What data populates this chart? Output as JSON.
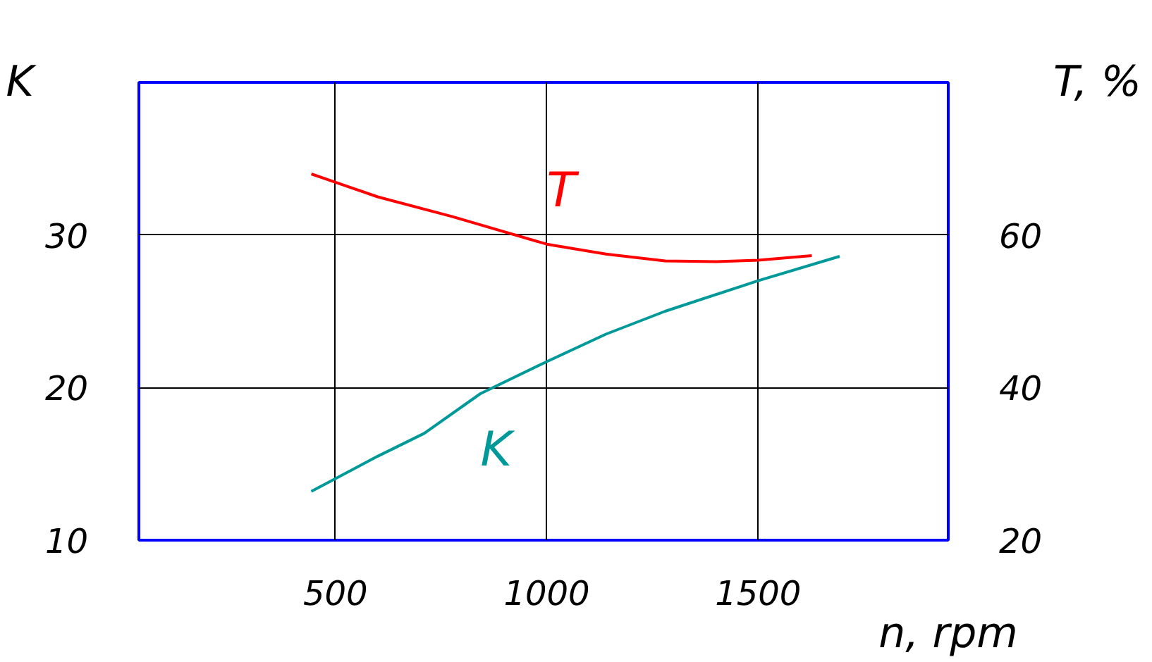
{
  "chart_data": {
    "type": "line",
    "ylabel": "K",
    "y2label": "T, %",
    "xlabel": "n, rpm",
    "xlim": [
      35,
      1950
    ],
    "xticks": [
      500,
      1000,
      1500
    ],
    "ylim": [
      10,
      40
    ],
    "yticks": [
      10,
      20,
      30
    ],
    "y2lim": [
      20,
      80
    ],
    "y2ticks": [
      20,
      40,
      60
    ],
    "grid": true,
    "series": [
      {
        "name": "T",
        "color": "#ff0000",
        "axis": "y2",
        "x": [
          443,
          600,
          777,
          1000,
          1140,
          1280,
          1400,
          1500,
          1627
        ],
        "values": [
          68,
          65,
          62.4,
          58.8,
          57.5,
          56.6,
          56.5,
          56.7,
          57.3
        ]
      },
      {
        "name": "K",
        "color": "#009999",
        "x": [
          443,
          600,
          710,
          843,
          1000,
          1140,
          1280,
          1500,
          1693
        ],
        "values": [
          13.2,
          15.5,
          17.0,
          19.6,
          21.7,
          23.5,
          25.0,
          27.0,
          28.6
        ]
      }
    ]
  }
}
